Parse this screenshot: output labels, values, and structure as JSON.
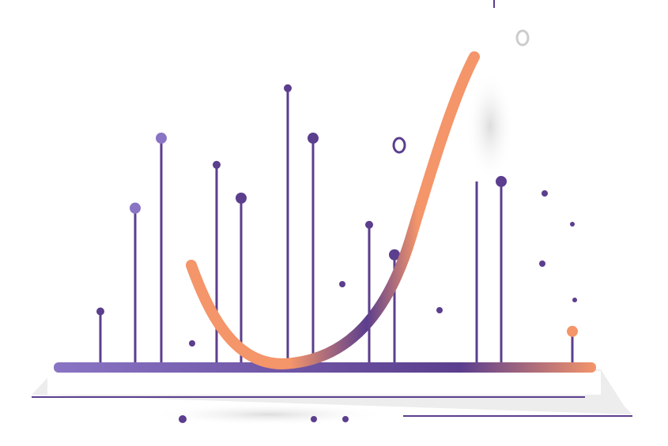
{
  "illustration": {
    "kind": "decorative lollipop chart with rising curve",
    "colors": {
      "purple": "#5b3e8e",
      "purple_light": "#8a74c4",
      "orange": "#f4956a",
      "base_shadow": "#e6e6e6"
    },
    "stems": [
      {
        "height": 0.16,
        "dot": "small",
        "color": "purple"
      },
      {
        "height": 0.47,
        "dot": "medium",
        "color": "purple_light"
      },
      {
        "height": 0.68,
        "dot": "medium",
        "color": "purple_light"
      },
      {
        "height": 0.6,
        "dot": "small",
        "color": "purple"
      },
      {
        "height": 0.5,
        "dot": "medium",
        "color": "purple"
      },
      {
        "height": 0.83,
        "dot": "small",
        "color": "purple"
      },
      {
        "height": 0.68,
        "dot": "medium",
        "color": "purple"
      },
      {
        "height": 0.42,
        "dot": "small",
        "color": "purple"
      },
      {
        "height": 0.33,
        "dot": "medium",
        "color": "purple"
      },
      {
        "height": 0.55,
        "dot": "none",
        "color": "purple"
      },
      {
        "height": 0.55,
        "dot": "medium",
        "color": "purple"
      },
      {
        "height": 0.1,
        "dot": "medium",
        "color": "orange"
      }
    ]
  }
}
